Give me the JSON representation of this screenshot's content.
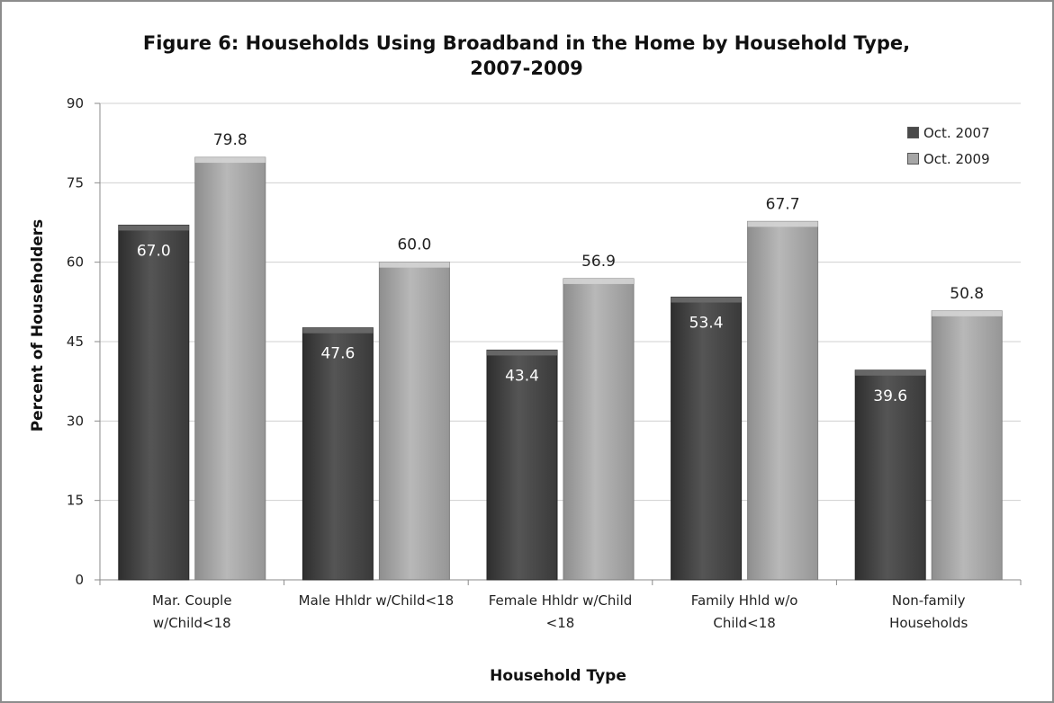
{
  "chart_data": {
    "type": "bar",
    "title": "Figure 6:  Households Using Broadband in the Home by Household Type, 2007-2009",
    "title_lines": [
      "Figure 6:  Households Using Broadband in the Home by Household Type,",
      "2007-2009"
    ],
    "xlabel": "Household Type",
    "ylabel": "Percent of Householders",
    "ylim": [
      0,
      90
    ],
    "yticks": [
      0,
      15,
      30,
      45,
      60,
      75,
      90
    ],
    "grid": true,
    "legend_position": "top-right",
    "categories": [
      [
        "Mar. Couple",
        "w/Child<18"
      ],
      [
        "Male Hhldr w/Child<18"
      ],
      [
        "Female Hhldr w/Child",
        "<18"
      ],
      [
        "Family Hhld w/o",
        "Child<18"
      ],
      [
        "Non-family",
        "Households"
      ]
    ],
    "series": [
      {
        "name": "Oct. 2007",
        "values": [
          67.0,
          47.6,
          43.4,
          53.4,
          39.6
        ],
        "labels": [
          "67.0",
          "47.6",
          "43.4",
          "53.4",
          "39.6"
        ],
        "color": "#4a4a4a",
        "label_color": "#ffffff",
        "label_inside": true
      },
      {
        "name": "Oct. 2009",
        "values": [
          79.8,
          60.0,
          56.9,
          67.7,
          50.8
        ],
        "labels": [
          "79.8",
          "60.0",
          "56.9",
          "67.7",
          "50.8"
        ],
        "color": "#a6a6a6",
        "label_color": "#222222",
        "label_inside": false
      }
    ]
  }
}
